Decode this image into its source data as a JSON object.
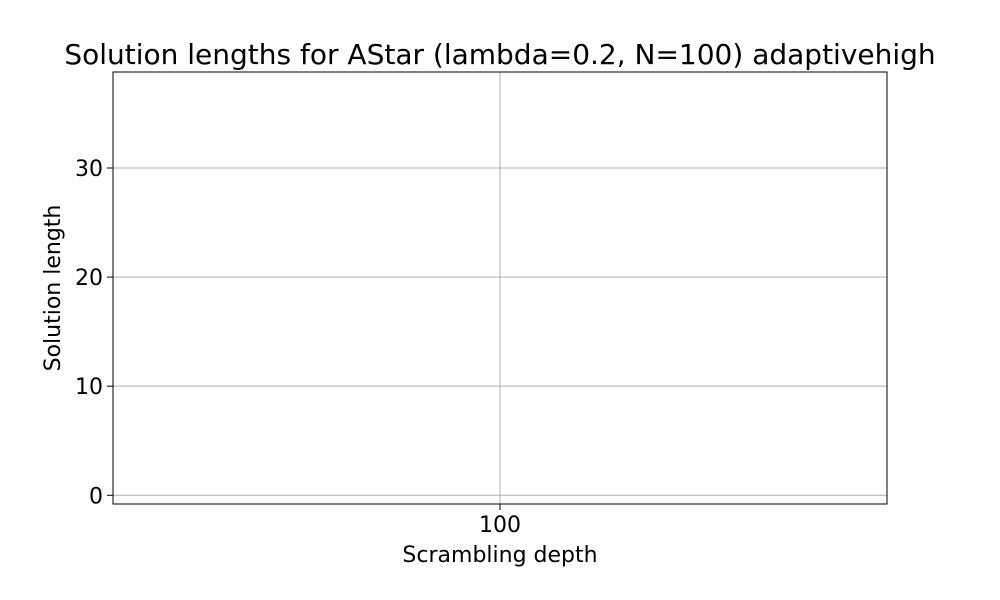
{
  "chart_data": {
    "type": "scatter",
    "title": "Solution lengths for AStar (lambda=0.2, N=100) adaptivehigh",
    "xlabel": "Scrambling depth",
    "ylabel": "Solution length",
    "x_ticks": [
      "100"
    ],
    "y_ticks": [
      0,
      10,
      20,
      30
    ],
    "ylim": [
      -0.8,
      38.8
    ],
    "grid": true,
    "series": []
  },
  "colors": {
    "grid": "#b0b0b0",
    "axes": "#000000",
    "background": "#ffffff"
  }
}
